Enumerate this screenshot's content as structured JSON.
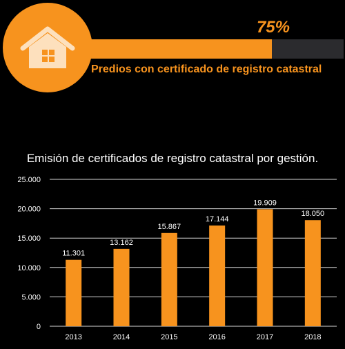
{
  "progress": {
    "percent_label": "75%",
    "value": 0.75,
    "label": "Predios con certificado de registro catastral",
    "icon": "house-icon",
    "accent_color": "#f7931e",
    "track_color": "#2b2b2e"
  },
  "chart_data": {
    "type": "bar",
    "title": "Emisión de certificados de registro catastral por gestión.",
    "categories": [
      "2013",
      "2014",
      "2015",
      "2016",
      "2017",
      "2018"
    ],
    "values": [
      11301,
      13162,
      15867,
      17144,
      19909,
      18050
    ],
    "value_labels": [
      "11.301",
      "13.162",
      "15.867",
      "17.144",
      "19.909",
      "18.050"
    ],
    "yticks": [
      0,
      5000,
      10000,
      15000,
      20000,
      25000
    ],
    "ytick_labels": [
      "0",
      "5.000",
      "10.000",
      "15.000",
      "20.000",
      "25.000"
    ],
    "ylim": [
      0,
      25000
    ],
    "grid": true,
    "bar_color": "#f7931e",
    "xlabel": "",
    "ylabel": ""
  }
}
